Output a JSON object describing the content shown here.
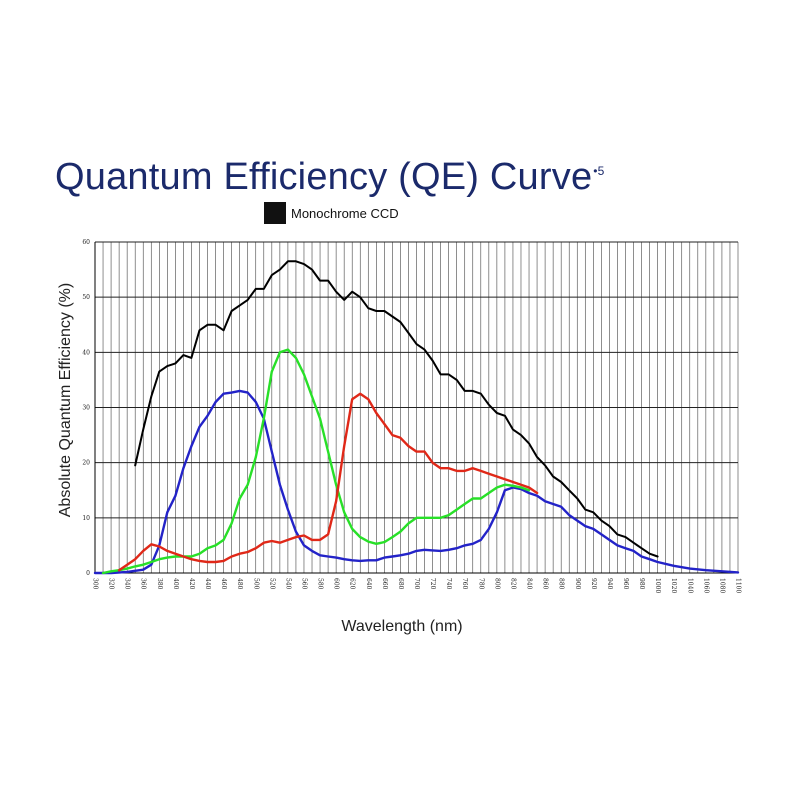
{
  "title": {
    "main": "Quantum Efficiency (QE) Curve",
    "superscript": "•5"
  },
  "legend": {
    "label": "Monochrome CCD",
    "color": "#000000"
  },
  "chart_data": {
    "type": "line",
    "title": "Quantum Efficiency (QE) Curve",
    "xlabel": "Wavelength (nm)",
    "ylabel": "Absolute Quantum Efficiency (%)",
    "xlim": [
      300,
      1100
    ],
    "ylim": [
      0,
      60
    ],
    "grid": true,
    "legend_position": "top",
    "x_ticks": [
      300,
      320,
      340,
      360,
      380,
      400,
      420,
      440,
      460,
      480,
      500,
      520,
      540,
      560,
      580,
      600,
      620,
      640,
      660,
      680,
      700,
      720,
      740,
      760,
      780,
      800,
      820,
      840,
      860,
      880,
      900,
      920,
      940,
      960,
      980,
      1000,
      1020,
      1040,
      1060,
      1080,
      1100
    ],
    "y_ticks": [
      0,
      10,
      20,
      30,
      40,
      50,
      60
    ],
    "series": [
      {
        "name": "Monochrome CCD",
        "color": "#000000",
        "x": [
          350,
          360,
          370,
          380,
          390,
          400,
          410,
          420,
          430,
          440,
          450,
          460,
          470,
          480,
          490,
          500,
          510,
          520,
          530,
          540,
          550,
          560,
          570,
          580,
          590,
          600,
          610,
          620,
          630,
          640,
          650,
          660,
          670,
          680,
          690,
          700,
          710,
          720,
          730,
          740,
          750,
          760,
          770,
          780,
          790,
          800,
          810,
          820,
          830,
          840,
          850,
          860,
          870,
          880,
          890,
          900,
          910,
          920,
          930,
          940,
          950,
          960,
          970,
          980,
          990,
          1000
        ],
        "y": [
          19.5,
          26,
          32,
          36.5,
          37.5,
          38,
          39.5,
          39,
          44,
          45,
          45,
          44,
          47.5,
          48.5,
          49.5,
          51.5,
          51.5,
          54,
          55,
          56.5,
          56.5,
          56,
          55,
          53,
          53,
          51,
          49.5,
          51,
          50,
          48,
          47.5,
          47.5,
          46.5,
          45.5,
          43.5,
          41.5,
          40.5,
          38.5,
          36,
          36,
          35,
          33,
          33,
          32.5,
          30.5,
          29,
          28.5,
          26,
          25,
          23.5,
          21,
          19.5,
          17.5,
          16.5,
          15,
          13.5,
          11.5,
          11,
          9.5,
          8.5,
          7,
          6.5,
          5.5,
          4.5,
          3.5,
          3
        ]
      },
      {
        "name": "Blue",
        "color": "#2323c8",
        "x": [
          300,
          320,
          340,
          350,
          360,
          370,
          380,
          390,
          400,
          410,
          420,
          430,
          440,
          450,
          460,
          470,
          480,
          490,
          500,
          510,
          520,
          530,
          540,
          550,
          560,
          570,
          580,
          590,
          600,
          610,
          620,
          630,
          640,
          650,
          660,
          670,
          680,
          690,
          700,
          710,
          720,
          730,
          740,
          750,
          760,
          770,
          780,
          790,
          800,
          810,
          820,
          830,
          840,
          850,
          860,
          870,
          880,
          890,
          900,
          910,
          920,
          930,
          940,
          950,
          960,
          970,
          980,
          990,
          1000,
          1020,
          1040,
          1060,
          1080,
          1100
        ],
        "y": [
          0,
          0,
          0.2,
          0.4,
          0.6,
          1.5,
          5,
          11,
          14,
          19,
          23,
          26.5,
          28.5,
          31,
          32.5,
          32.7,
          33,
          32.7,
          31,
          28,
          22,
          16,
          11.5,
          7.5,
          5,
          4,
          3.2,
          3,
          2.8,
          2.5,
          2.3,
          2.2,
          2.3,
          2.3,
          2.8,
          3,
          3.2,
          3.5,
          4,
          4.2,
          4.1,
          4,
          4.2,
          4.5,
          5,
          5.3,
          6,
          8,
          11,
          15,
          15.5,
          15.2,
          14.5,
          14,
          13,
          12.5,
          12,
          10.5,
          9.5,
          8.5,
          8,
          7,
          6,
          5,
          4.5,
          4,
          3,
          2.5,
          2,
          1.3,
          0.8,
          0.5,
          0.3,
          0.1
        ]
      },
      {
        "name": "Green",
        "color": "#28e028",
        "x": [
          310,
          320,
          330,
          340,
          350,
          360,
          370,
          380,
          390,
          400,
          410,
          420,
          430,
          440,
          450,
          460,
          470,
          480,
          490,
          500,
          510,
          520,
          530,
          540,
          550,
          560,
          570,
          580,
          590,
          600,
          610,
          620,
          630,
          640,
          650,
          660,
          670,
          680,
          690,
          700,
          710,
          720,
          730,
          740,
          750,
          760,
          770,
          780,
          790,
          800,
          810,
          820,
          830,
          840
        ],
        "y": [
          0,
          0.3,
          0.5,
          0.8,
          1.2,
          1.5,
          2,
          2.5,
          2.8,
          3,
          3,
          3,
          3.5,
          4.5,
          5,
          6,
          9,
          13.5,
          16,
          21,
          28,
          36.5,
          40,
          40.5,
          39,
          36,
          32,
          28,
          22,
          16,
          11,
          8,
          6.5,
          5.7,
          5.3,
          5.6,
          6.5,
          7.5,
          9,
          10,
          10,
          10,
          10,
          10.5,
          11.5,
          12.5,
          13.5,
          13.5,
          14.5,
          15.5,
          16,
          15.8,
          15.5,
          15
        ]
      },
      {
        "name": "Red",
        "color": "#e02818",
        "x": [
          330,
          340,
          350,
          360,
          370,
          380,
          390,
          400,
          410,
          420,
          430,
          440,
          450,
          460,
          470,
          480,
          490,
          500,
          510,
          520,
          530,
          540,
          550,
          560,
          570,
          580,
          590,
          600,
          610,
          620,
          630,
          640,
          650,
          660,
          670,
          680,
          690,
          700,
          710,
          720,
          730,
          740,
          750,
          760,
          770,
          780,
          790,
          800,
          810,
          820,
          830,
          840,
          850
        ],
        "y": [
          0.5,
          1.5,
          2.5,
          4,
          5.2,
          4.8,
          4,
          3.5,
          3,
          2.5,
          2.2,
          2,
          2,
          2.2,
          3,
          3.5,
          3.8,
          4.5,
          5.5,
          5.8,
          5.5,
          6,
          6.5,
          6.8,
          6,
          6,
          7,
          13,
          23,
          31.5,
          32.5,
          31.5,
          29,
          27,
          25,
          24.5,
          23,
          22,
          22,
          20,
          19,
          19,
          18.5,
          18.5,
          19,
          18.5,
          18,
          17.5,
          17,
          16.5,
          16,
          15.5,
          14.5
        ]
      }
    ]
  }
}
